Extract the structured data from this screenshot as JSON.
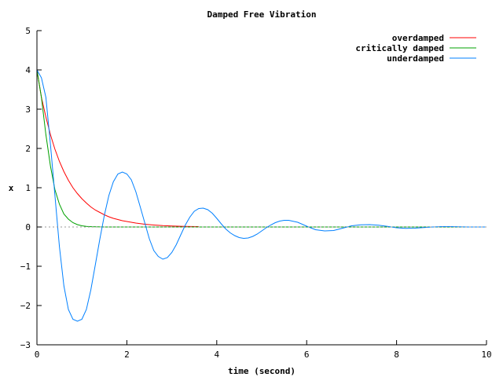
{
  "chart_data": {
    "type": "line",
    "title": "Damped Free Vibration",
    "xlabel": "time (second)",
    "ylabel": "x",
    "xlim": [
      0,
      10
    ],
    "ylim": [
      -3,
      5
    ],
    "xticks": [
      0,
      2,
      4,
      6,
      8,
      10
    ],
    "yticks": [
      -3,
      -2,
      -1,
      0,
      1,
      2,
      3,
      4,
      5
    ],
    "grid": false,
    "zero_line": true,
    "legend_position": "top-right",
    "series": [
      {
        "name": "overdamped",
        "color": "#ff0000",
        "x": [
          0,
          0.1,
          0.2,
          0.3,
          0.4,
          0.5,
          0.6,
          0.7,
          0.8,
          0.9,
          1.0,
          1.1,
          1.2,
          1.3,
          1.4,
          1.5,
          1.6,
          1.7,
          1.8,
          1.9,
          2.0,
          2.2,
          2.4,
          2.6,
          2.8,
          3.0,
          3.2,
          3.4,
          3.6
        ],
        "y": [
          4.0,
          3.3,
          2.8,
          2.35,
          1.98,
          1.67,
          1.41,
          1.19,
          1.0,
          0.85,
          0.72,
          0.61,
          0.51,
          0.43,
          0.37,
          0.31,
          0.26,
          0.22,
          0.19,
          0.16,
          0.14,
          0.1,
          0.07,
          0.05,
          0.035,
          0.025,
          0.018,
          0.013,
          0.01
        ]
      },
      {
        "name": "critically damped",
        "color": "#00a000",
        "x": [
          0,
          0.1,
          0.2,
          0.3,
          0.4,
          0.5,
          0.6,
          0.7,
          0.8,
          0.9,
          1.0,
          1.1,
          1.2,
          1.3,
          1.5,
          2.0,
          4.0,
          6.0,
          8.0,
          10.0
        ],
        "y": [
          4.0,
          3.3,
          2.35,
          1.55,
          0.95,
          0.58,
          0.33,
          0.2,
          0.11,
          0.06,
          0.03,
          0.015,
          0.008,
          0.004,
          0.001,
          0.0,
          0.0,
          0.0,
          0.0,
          0.0
        ]
      },
      {
        "name": "underdamped",
        "color": "#0080ff",
        "x": [
          0,
          0.1,
          0.2,
          0.3,
          0.4,
          0.5,
          0.6,
          0.7,
          0.8,
          0.9,
          1.0,
          1.1,
          1.2,
          1.3,
          1.4,
          1.5,
          1.6,
          1.7,
          1.8,
          1.9,
          2.0,
          2.1,
          2.2,
          2.3,
          2.4,
          2.5,
          2.6,
          2.7,
          2.8,
          2.9,
          3.0,
          3.1,
          3.2,
          3.3,
          3.4,
          3.5,
          3.6,
          3.7,
          3.8,
          3.9,
          4.0,
          4.1,
          4.2,
          4.3,
          4.4,
          4.5,
          4.6,
          4.7,
          4.8,
          4.9,
          5.0,
          5.1,
          5.2,
          5.3,
          5.4,
          5.5,
          5.6,
          5.8,
          6.0,
          6.2,
          6.4,
          6.6,
          6.8,
          7.0,
          7.2,
          7.4,
          7.6,
          7.8,
          8.0,
          8.2,
          8.4,
          8.6,
          8.8,
          9.0,
          9.2,
          9.4,
          9.6,
          9.8,
          10.0
        ],
        "y": [
          4.0,
          3.8,
          3.3,
          2.1,
          0.8,
          -0.5,
          -1.5,
          -2.1,
          -2.35,
          -2.4,
          -2.35,
          -2.1,
          -1.6,
          -0.95,
          -0.3,
          0.3,
          0.8,
          1.15,
          1.35,
          1.4,
          1.35,
          1.2,
          0.9,
          0.5,
          0.1,
          -0.3,
          -0.6,
          -0.75,
          -0.82,
          -0.78,
          -0.65,
          -0.45,
          -0.2,
          0.05,
          0.25,
          0.4,
          0.47,
          0.48,
          0.44,
          0.35,
          0.22,
          0.08,
          -0.05,
          -0.15,
          -0.22,
          -0.27,
          -0.29,
          -0.28,
          -0.24,
          -0.18,
          -0.1,
          -0.02,
          0.05,
          0.11,
          0.15,
          0.17,
          0.17,
          0.12,
          0.02,
          -0.07,
          -0.1,
          -0.09,
          -0.03,
          0.03,
          0.055,
          0.06,
          0.045,
          0.015,
          -0.02,
          -0.035,
          -0.03,
          -0.015,
          0.0,
          0.01,
          0.01,
          0.005,
          0.0,
          0.0,
          0.0
        ]
      }
    ]
  }
}
